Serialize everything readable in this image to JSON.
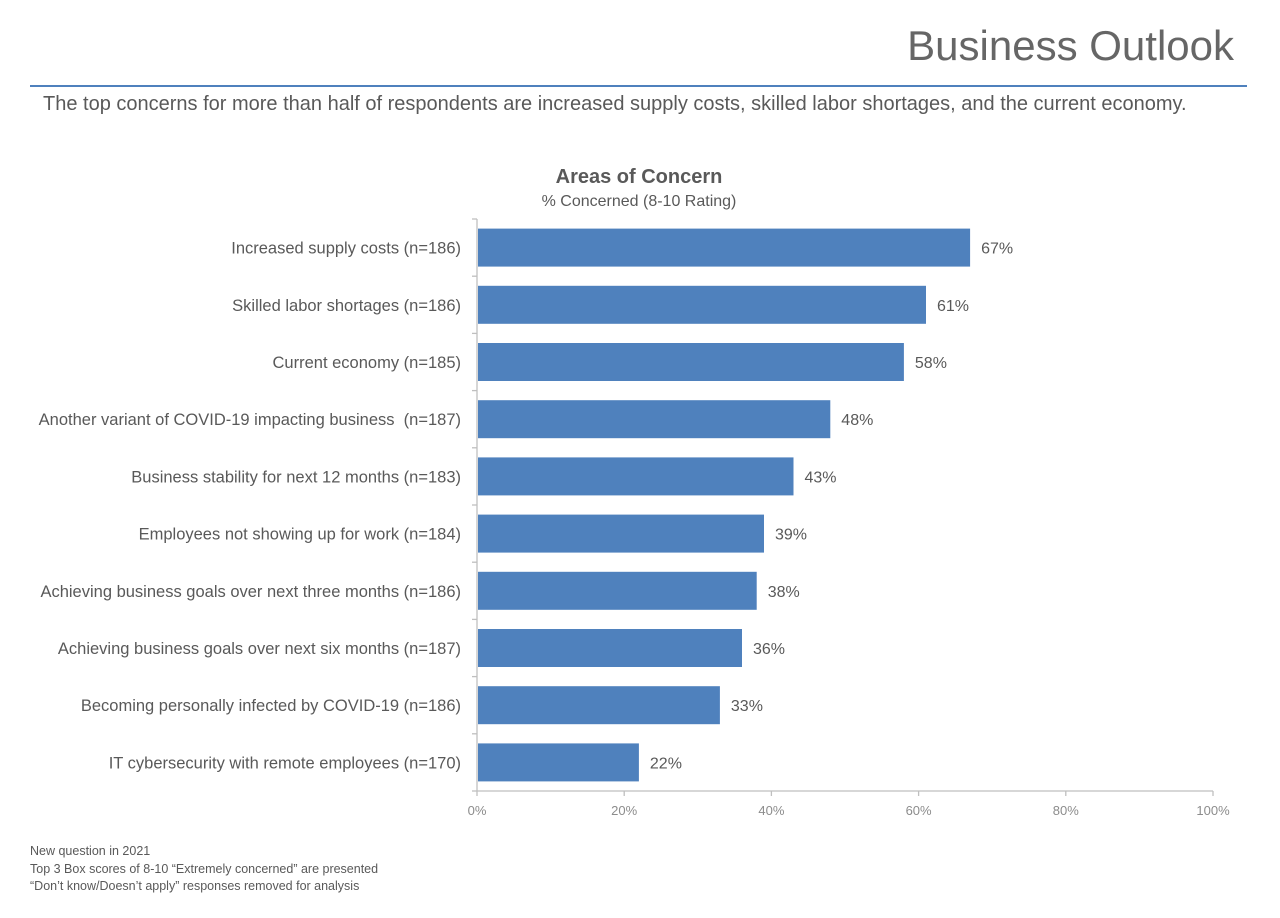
{
  "page": {
    "title": "Business Outlook",
    "subtitle": "The top concerns for more than half of respondents are increased supply costs, skilled labor shortages, and the current economy.",
    "footnotes": [
      "New question in 2021",
      "Top 3 Box scores of 8-10 “Extremely concerned” are presented",
      "“Don’t know/Doesn’t apply” responses removed for analysis"
    ]
  },
  "colors": {
    "bar": "#4f81bd",
    "rule": "#4f81bd",
    "axis": "#bfbfbf",
    "text": "#595959"
  },
  "chart_data": {
    "type": "bar",
    "orientation": "horizontal",
    "title": "Areas of Concern",
    "subtitle": "% Concerned (8-10 Rating)",
    "categories": [
      "Increased supply costs (n=186)",
      "Skilled labor shortages (n=186)",
      "Current economy (n=185)",
      "Another variant of COVID-19 impacting business  (n=187)",
      "Business stability for next 12 months (n=183)",
      "Employees not showing up for work (n=184)",
      "Achieving business goals over next three months (n=186)",
      "Achieving business goals over next six months (n=187)",
      "Becoming personally infected by COVID-19 (n=186)",
      "IT cybersecurity with remote employees (n=170)"
    ],
    "values": [
      67,
      61,
      58,
      48,
      43,
      39,
      38,
      36,
      33,
      22
    ],
    "value_labels": [
      "67%",
      "61%",
      "58%",
      "48%",
      "43%",
      "39%",
      "38%",
      "36%",
      "33%",
      "22%"
    ],
    "xlim": [
      0,
      100
    ],
    "xticks": [
      0,
      20,
      40,
      60,
      80,
      100
    ],
    "xtick_labels": [
      "0%",
      "20%",
      "40%",
      "60%",
      "80%",
      "100%"
    ],
    "xlabel": "",
    "ylabel": "",
    "grid": false,
    "legend": "none"
  }
}
